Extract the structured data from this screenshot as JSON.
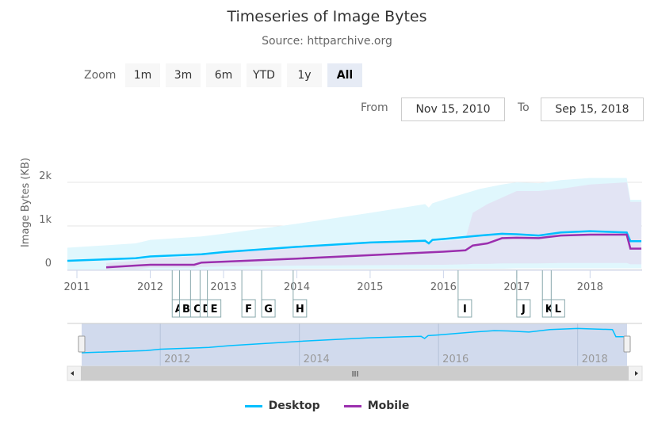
{
  "chart_data": {
    "type": "line",
    "title": "Timeseries of Image Bytes",
    "subtitle": "Source: httparchive.org",
    "ylabel": "Image Bytes (KB)",
    "yticks": [
      "0",
      "1k",
      "2k"
    ],
    "ylim": [
      0,
      2000
    ],
    "xlim": [
      "Nov 15, 2010",
      "Sep 15, 2018"
    ],
    "xticks": [
      "2011",
      "2012",
      "2013",
      "2014",
      "2015",
      "2016",
      "2017",
      "2018"
    ],
    "navigator_ticks": [
      "2012",
      "2014",
      "2016",
      "2018"
    ],
    "grid": true,
    "legend_position": "bottom",
    "series": [
      {
        "name": "Desktop",
        "color": "#00bfff",
        "x": [
          2010.87,
          2011.8,
          2012.0,
          2012.7,
          2013.0,
          2014.0,
          2015.0,
          2015.75,
          2015.8,
          2015.85,
          2016.0,
          2016.5,
          2016.8,
          2017.0,
          2017.3,
          2017.6,
          2018.0,
          2018.5,
          2018.55,
          2018.7
        ],
        "values": [
          200,
          260,
          300,
          350,
          400,
          520,
          620,
          660,
          600,
          680,
          700,
          780,
          820,
          810,
          780,
          850,
          880,
          850,
          650,
          650
        ],
        "band_upper": [
          500,
          600,
          680,
          760,
          820,
          1050,
          1300,
          1500,
          1420,
          1520,
          1600,
          1850,
          1950,
          2000,
          1980,
          2050,
          2100,
          2100,
          1600,
          1600
        ],
        "band_lower": [
          0,
          0,
          0,
          0,
          10,
          20,
          20,
          20,
          20,
          20,
          20,
          20,
          20,
          30,
          30,
          30,
          30,
          30,
          30,
          30
        ]
      },
      {
        "name": "Mobile",
        "color": "#9b2fae",
        "x": [
          2011.4,
          2011.8,
          2012.0,
          2012.6,
          2012.7,
          2013.0,
          2014.0,
          2015.0,
          2016.0,
          2016.3,
          2016.4,
          2016.6,
          2016.8,
          2017.0,
          2017.3,
          2017.6,
          2018.0,
          2018.5,
          2018.55,
          2018.7
        ],
        "values": [
          50,
          90,
          110,
          110,
          160,
          180,
          250,
          330,
          410,
          440,
          550,
          600,
          720,
          730,
          720,
          780,
          800,
          800,
          480,
          480
        ],
        "band_upper": [
          150,
          200,
          250,
          300,
          350,
          400,
          500,
          600,
          650,
          700,
          1300,
          1500,
          1650,
          1800,
          1800,
          1850,
          1950,
          2000,
          1550,
          1550
        ],
        "band_lower": [
          0,
          0,
          40,
          40,
          60,
          70,
          90,
          100,
          110,
          120,
          130,
          130,
          140,
          140,
          140,
          150,
          150,
          150,
          120,
          120
        ]
      }
    ],
    "flags": [
      {
        "x": 2012.3,
        "title": "A"
      },
      {
        "x": 2012.4,
        "title": "B"
      },
      {
        "x": 2012.55,
        "title": "C"
      },
      {
        "x": 2012.68,
        "title": "D"
      },
      {
        "x": 2012.78,
        "title": "E"
      },
      {
        "x": 2013.25,
        "title": "F"
      },
      {
        "x": 2013.52,
        "title": "G"
      },
      {
        "x": 2013.95,
        "title": "H"
      },
      {
        "x": 2016.2,
        "title": "I"
      },
      {
        "x": 2017.0,
        "title": "J"
      },
      {
        "x": 2017.35,
        "title": "K"
      },
      {
        "x": 2017.47,
        "title": "L"
      }
    ]
  },
  "range_selector": {
    "zoom_label": "Zoom",
    "buttons": [
      "1m",
      "3m",
      "6m",
      "YTD",
      "1y",
      "All"
    ],
    "selected": "All"
  },
  "inputs": {
    "from_label": "From",
    "from": "Nov 15, 2010",
    "to_label": "To",
    "to": "Sep 15, 2018"
  },
  "scrollbar": {
    "grip": "III"
  }
}
